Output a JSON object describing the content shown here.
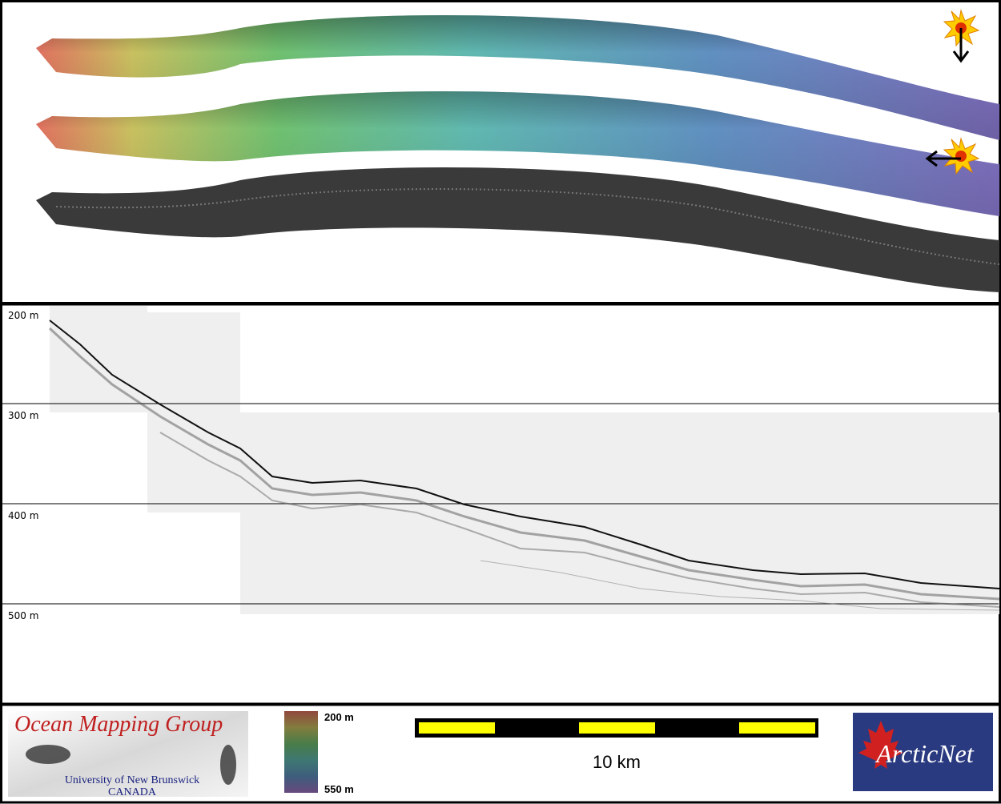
{
  "profile": {
    "depth_labels": [
      "200 m",
      "300 m",
      "400 m",
      "500 m"
    ]
  },
  "logos": {
    "omg_title": "Ocean Mapping Group",
    "omg_university": "University of New Brunswick",
    "omg_country": "CANADA",
    "arcticnet": "ArcticNet"
  },
  "colorbar": {
    "top_label": "200 m",
    "bottom_label": "550 m"
  },
  "scale_bar": {
    "label": "10 km"
  }
}
